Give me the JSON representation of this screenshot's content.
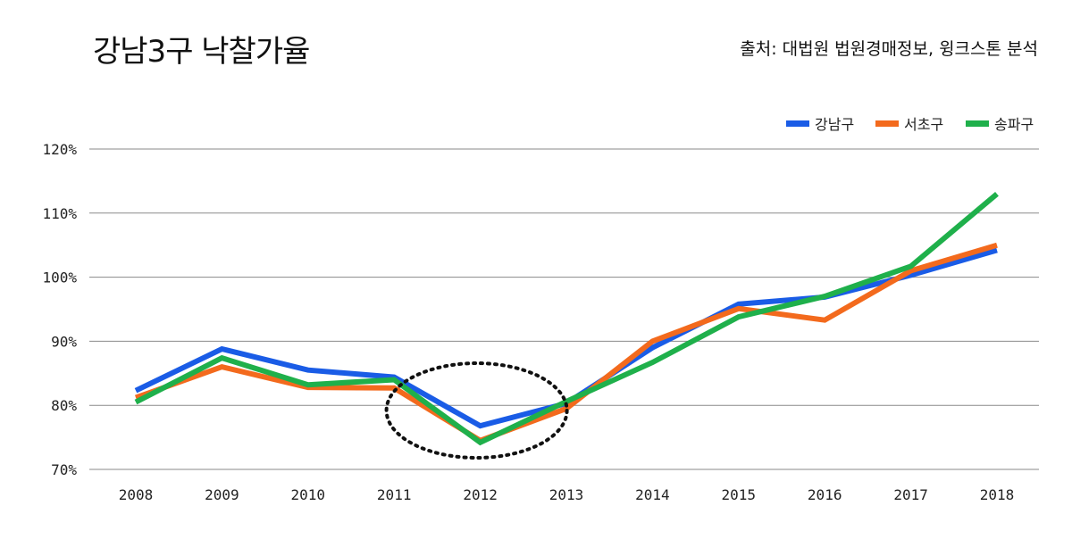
{
  "title": "강남3구 낙찰가율",
  "source": "출처: 대법원 법원경매정보, 윙크스톤 분석",
  "chart_data": {
    "type": "line",
    "x": [
      "2008",
      "2009",
      "2010",
      "2011",
      "2012",
      "2013",
      "2014",
      "2015",
      "2016",
      "2017",
      "2018"
    ],
    "ylim": [
      70,
      120
    ],
    "yticks": [
      70,
      80,
      90,
      100,
      110,
      120
    ],
    "ytick_labels": [
      "70%",
      "80%",
      "90%",
      "100%",
      "110%",
      "120%"
    ],
    "grid": true,
    "legend_position": "top-right",
    "series": [
      {
        "name": "강남구",
        "color": "#1a5ce6",
        "values": [
          82.3,
          88.8,
          85.5,
          84.4,
          76.8,
          80.3,
          89.0,
          95.8,
          96.9,
          100.3,
          104.2
        ]
      },
      {
        "name": "서초구",
        "color": "#f36a1d",
        "values": [
          81.2,
          86.0,
          82.8,
          82.7,
          74.5,
          79.5,
          90.0,
          95.1,
          93.3,
          101.0,
          105.0
        ]
      },
      {
        "name": "송파구",
        "color": "#1fb04b",
        "values": [
          80.5,
          87.4,
          83.2,
          84.0,
          74.2,
          80.6,
          86.7,
          93.8,
          97.0,
          101.7,
          113.0
        ]
      }
    ],
    "annotation": {
      "type": "dotted-ellipse",
      "around_x": "2012"
    }
  }
}
